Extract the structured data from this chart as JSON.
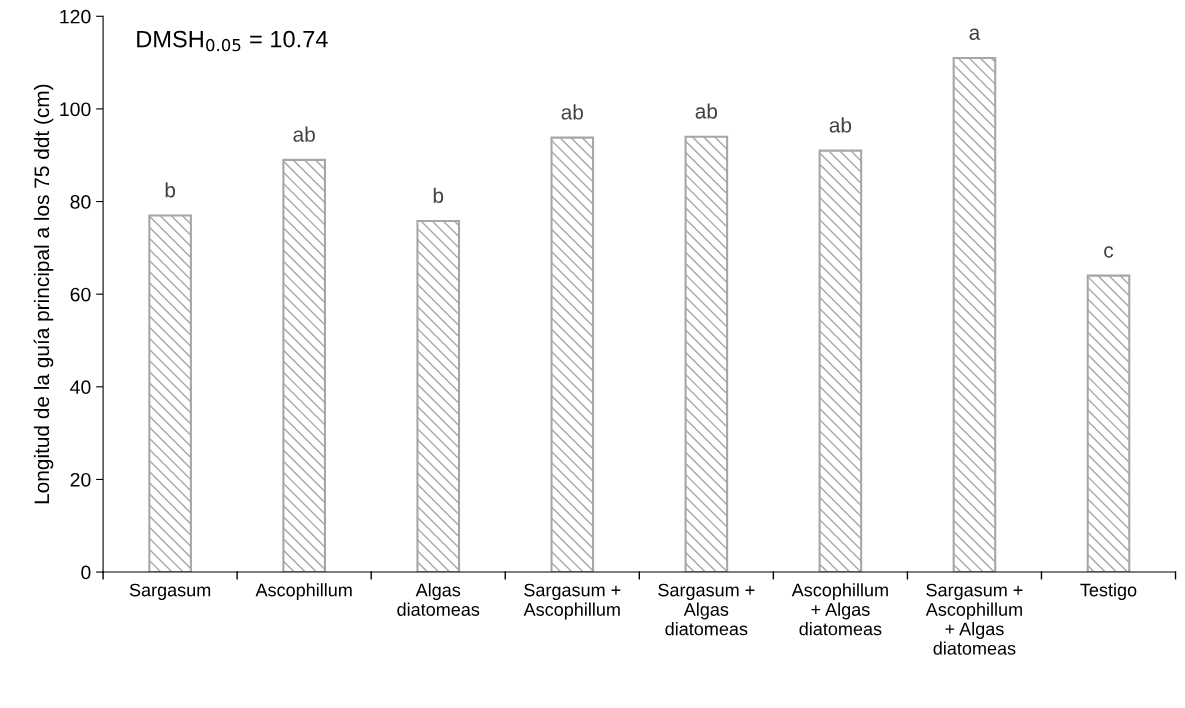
{
  "chart_data": {
    "type": "bar",
    "ylabel": "Longitud de la guía principal a los 75 ddt (cm)",
    "categories": [
      "Sargasum",
      "Ascophillum",
      "Algas\ndiatomeas",
      "Sargasum +\nAscophillum",
      "Sargasum +\nAlgas\ndiatomeas",
      "Ascophillum\n+ Algas\ndiatomeas",
      "Sargasum +\nAscophillum\n+ Algas\ndiatomeas",
      "Testigo"
    ],
    "values": [
      77,
      89,
      75.8,
      93.8,
      94,
      91,
      111,
      64
    ],
    "value_labels": [
      "b",
      "ab",
      "b",
      "ab",
      "ab",
      "ab",
      "a",
      "c"
    ],
    "color": "#a6a6a6",
    "ylim": [
      0,
      120
    ],
    "yticks": [
      0,
      20,
      40,
      60,
      80,
      100,
      120
    ],
    "grid": false,
    "annotations": [
      "DMSH$_{0.05}$ = 10.74"
    ]
  }
}
